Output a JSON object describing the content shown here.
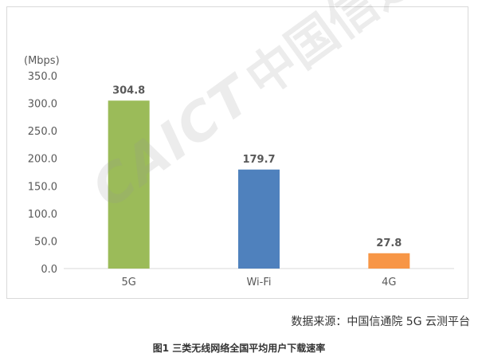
{
  "chart_data": {
    "type": "bar",
    "categories": [
      "5G",
      "Wi-Fi",
      "4G"
    ],
    "values": [
      304.8,
      179.7,
      27.8
    ],
    "data_labels": [
      "304.8",
      "179.7",
      "27.8"
    ],
    "bar_colors": [
      "#9bbb59",
      "#4f81bd",
      "#f79646"
    ],
    "unit_label": "(Mbps)",
    "y_ticks": [
      "0.0",
      "50.0",
      "100.0",
      "150.0",
      "200.0",
      "250.0",
      "300.0",
      "350.0"
    ],
    "ylim": [
      0,
      350
    ],
    "grid": false,
    "legend": "none"
  },
  "source_text": "数据来源：中国信通院 5G 云测平台",
  "caption": "图1  三类无线网络全国平均用户下载速率",
  "watermark": {
    "en": "CAICT",
    "cn": "中国信通院"
  }
}
